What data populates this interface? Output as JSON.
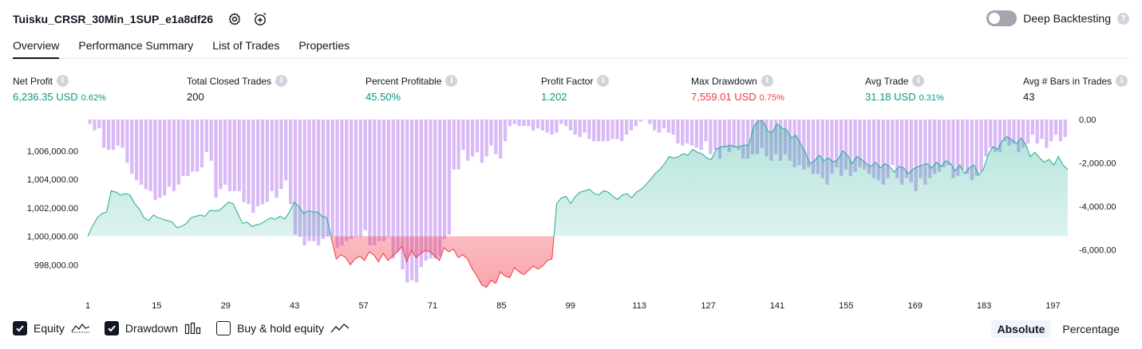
{
  "header": {
    "strategy_name": "Tuisku_CRSR_30Min_1SUP_e1a8df26",
    "settings_icon": "gear-icon",
    "alert_icon": "alarm-plus-icon"
  },
  "deep_backtesting": {
    "label": "Deep Backtesting",
    "enabled": false
  },
  "tabs": [
    {
      "label": "Overview",
      "active": true
    },
    {
      "label": "Performance Summary",
      "active": false
    },
    {
      "label": "List of Trades",
      "active": false
    },
    {
      "label": "Properties",
      "active": false
    }
  ],
  "metrics": [
    {
      "label": "Net Profit",
      "value": "6,236.35 USD",
      "pct": "0.62%",
      "color": "green"
    },
    {
      "label": "Total Closed Trades",
      "value": "200",
      "pct": "",
      "color": "dark"
    },
    {
      "label": "Percent Profitable",
      "value": "45.50%",
      "pct": "",
      "color": "green"
    },
    {
      "label": "Profit Factor",
      "value": "1.202",
      "pct": "",
      "color": "green"
    },
    {
      "label": "Max Drawdown",
      "value": "7,559.01 USD",
      "pct": "0.75%",
      "color": "red"
    },
    {
      "label": "Avg Trade",
      "value": "31.18 USD",
      "pct": "0.31%",
      "color": "green"
    },
    {
      "label": "Avg # Bars in Trades",
      "value": "43",
      "pct": "",
      "color": "dark"
    }
  ],
  "legend": {
    "equity": {
      "label": "Equity",
      "checked": true
    },
    "drawdown": {
      "label": "Drawdown",
      "checked": true
    },
    "buy_hold": {
      "label": "Buy & hold equity",
      "checked": false
    }
  },
  "modes": {
    "absolute": "Absolute",
    "percentage": "Percentage",
    "active": "absolute"
  },
  "colors": {
    "equity_line_up": "#22ab94",
    "equity_line_down": "#f23645",
    "equity_fill_up": "#cdeee6",
    "equity_fill_down": "#f7c7cc",
    "drawdown_bar": "#d7b5f6",
    "drawdown_bar_overlap": "#a9b3e8"
  },
  "chart_data": {
    "type": "area",
    "x_ticks": [
      "1",
      "15",
      "29",
      "43",
      "57",
      "71",
      "85",
      "99",
      "113",
      "127",
      "141",
      "155",
      "169",
      "183",
      "197"
    ],
    "x_range": [
      1,
      200
    ],
    "left_axis": {
      "ticks": [
        "1,006,000.00",
        "1,004,000.00",
        "1,002,000.00",
        "1,000,000.00",
        "998,000.00"
      ],
      "range": [
        996000,
        1008200
      ],
      "baseline": 1000000
    },
    "right_axis": {
      "ticks": [
        "0.00",
        "-2,000.00",
        "-4,000.00",
        "-6,000.00"
      ],
      "range": [
        -8000,
        0
      ]
    },
    "series": [
      {
        "name": "Equity",
        "values": [
          1000000,
          1000700,
          1001300,
          1001600,
          1001700,
          1003200,
          1003100,
          1002900,
          1003000,
          1002900,
          1002300,
          1001900,
          1001300,
          1001100,
          1001500,
          1001300,
          1001200,
          1001100,
          1001000,
          1000600,
          1000700,
          1000900,
          1001300,
          1001400,
          1001500,
          1001400,
          1001800,
          1001800,
          1001800,
          1002100,
          1002400,
          1002300,
          1001600,
          1000900,
          1001000,
          1000700,
          1000800,
          1000900,
          1001100,
          1001300,
          1001200,
          1001400,
          1001200,
          1001700,
          1002400,
          1002100,
          1001600,
          1001800,
          1001700,
          1001700,
          1001400,
          1001300,
          999800,
          998400,
          998700,
          998500,
          998000,
          998400,
          998600,
          998300,
          998900,
          998700,
          998200,
          998800,
          998300,
          998600,
          998900,
          999300,
          998200,
          999000,
          998500,
          998800,
          999000,
          998900,
          998600,
          998300,
          999200,
          998900,
          999100,
          998500,
          998700,
          998400,
          997700,
          997200,
          996600,
          996400,
          996900,
          996700,
          997500,
          997200,
          997100,
          997800,
          997500,
          997300,
          997600,
          997900,
          997700,
          997900,
          998300,
          998400,
          1002300,
          1002700,
          1002800,
          1002300,
          1002800,
          1003100,
          1003200,
          1003300,
          1003000,
          1002900,
          1003200,
          1003100,
          1002800,
          1002600,
          1002900,
          1003000,
          1002700,
          1003100,
          1003300,
          1003600,
          1004000,
          1004400,
          1004700,
          1005100,
          1005600,
          1005500,
          1005600,
          1005800,
          1005700,
          1006100,
          1005900,
          1005800,
          1005500,
          1005400,
          1006100,
          1006300,
          1006300,
          1006400,
          1006300,
          1006300,
          1006400,
          1006400,
          1007700,
          1008100,
          1008100,
          1007400,
          1007300,
          1007900,
          1007600,
          1007500,
          1006900,
          1007100,
          1006500,
          1005900,
          1005100,
          1005300,
          1005700,
          1005300,
          1005500,
          1005200,
          1005400,
          1006000,
          1005700,
          1005100,
          1005600,
          1005400,
          1005100,
          1004900,
          1005200,
          1004800,
          1005100,
          1004900,
          1004500,
          1004900,
          1004800,
          1004400,
          1004700,
          1004900,
          1005000,
          1005100,
          1004800,
          1005200,
          1004900,
          1005300,
          1005100,
          1004600,
          1005000,
          1004400,
          1004800,
          1005000,
          1004300,
          1004700,
          1005700,
          1006300,
          1006100,
          1006700,
          1007000,
          1006800,
          1006500,
          1006900,
          1006500,
          1005600,
          1005900,
          1005500,
          1005200,
          1005400,
          1005000,
          1005600,
          1005000,
          1004700
        ]
      },
      {
        "name": "Drawdown",
        "values": [
          -200,
          -500,
          -400,
          -1300,
          -1400,
          -1400,
          -1200,
          -1300,
          -2000,
          -2500,
          -2800,
          -3000,
          -3200,
          -3300,
          -3700,
          -3600,
          -3500,
          -3100,
          -3300,
          -3000,
          -2600,
          -2600,
          -2400,
          -2400,
          -2200,
          -1500,
          -1900,
          -3600,
          -3200,
          -3000,
          -3300,
          -3300,
          -3300,
          -3800,
          -3900,
          -4300,
          -4000,
          -3900,
          -3800,
          -3300,
          -3600,
          -3200,
          -2800,
          -3900,
          -5300,
          -5400,
          -5800,
          -5600,
          -5600,
          -5800,
          -5500,
          -5400,
          -5400,
          -5900,
          -5800,
          -5600,
          -5500,
          -5400,
          -5400,
          -5100,
          -5800,
          -5800,
          -5600,
          -5600,
          -5400,
          -6400,
          -6100,
          -6900,
          -7500,
          -7400,
          -7500,
          -6800,
          -6500,
          -6400,
          -6400,
          -6300,
          -5500,
          -5300,
          -2300,
          -2300,
          -1400,
          -1900,
          -1700,
          -1500,
          -2000,
          -1700,
          -1200,
          -1600,
          -1800,
          -1000,
          -300,
          -200,
          -300,
          -300,
          -300,
          -500,
          -400,
          -500,
          -600,
          -700,
          -600,
          -200,
          -300,
          -500,
          -700,
          -800,
          -600,
          -900,
          -1000,
          -1000,
          -1000,
          -1000,
          -900,
          -900,
          -1000,
          -700,
          -500,
          -300,
          -100,
          0,
          -200,
          -500,
          -600,
          -400,
          -600,
          -700,
          -1100,
          -1200,
          -1100,
          -1200,
          -1300,
          -1400,
          -1000,
          -1600,
          -1400,
          -1800,
          -1300,
          -1500,
          -1300,
          -1400,
          -1800,
          -1800,
          -1600,
          -1600,
          -1300,
          -1700,
          -1900,
          -1600,
          -1900,
          -1600,
          -1900,
          -2200,
          -2100,
          -2300,
          -2200,
          -2500,
          -2500,
          -2700,
          -3000,
          -2500,
          -2200,
          -2600,
          -2300,
          -2600,
          -2400,
          -2200,
          -2300,
          -2500,
          -2700,
          -2800,
          -3000,
          -2700,
          -2100,
          -2700,
          -3000,
          -2700,
          -2900,
          -3300,
          -2700,
          -3000,
          -2700,
          -2500,
          -2400,
          -2200,
          -2100,
          -2700,
          -2600,
          -2300,
          -2500,
          -2800,
          -2600,
          -2400,
          -1700,
          -1300,
          -1500,
          -1500,
          -1000,
          -1200,
          -1100,
          -1500,
          -1300,
          -1100,
          -700,
          -1100,
          -900,
          -1300,
          -1000,
          -700,
          -1000,
          -800
        ]
      }
    ]
  }
}
